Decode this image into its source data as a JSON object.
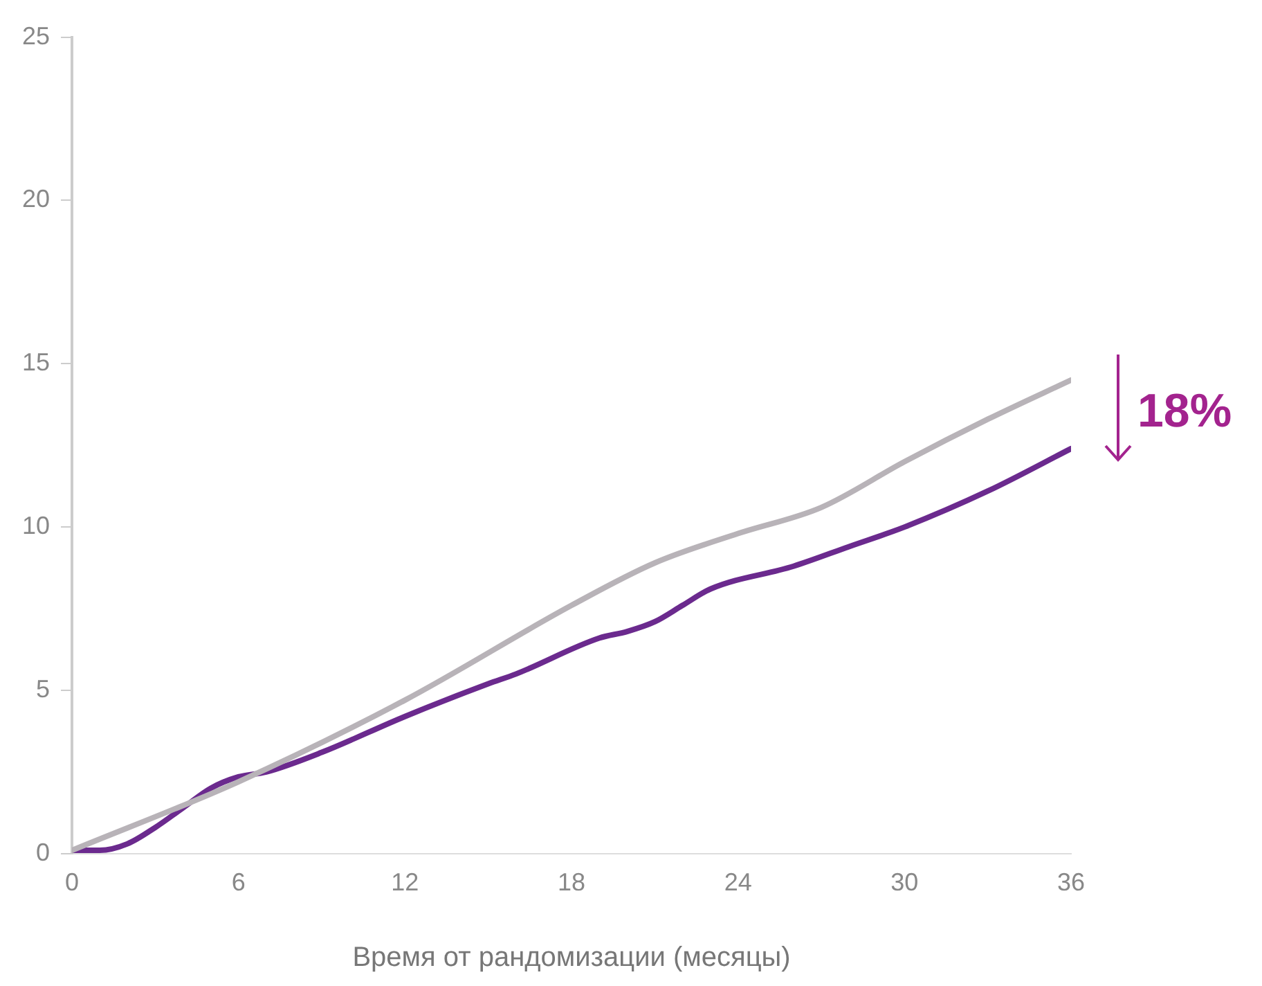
{
  "chart_data": {
    "type": "line",
    "xlabel": "Время от рандомизации (месяцы)",
    "x": [
      0,
      1,
      2,
      3,
      4,
      5,
      6,
      7,
      9,
      12,
      15,
      16,
      19,
      20,
      21,
      22,
      23,
      26,
      28,
      30,
      33,
      36
    ],
    "xlim": [
      0,
      36
    ],
    "xticks": [
      0,
      6,
      12,
      18,
      24,
      30,
      36
    ],
    "ylim": [
      0,
      25
    ],
    "yticks": [
      0,
      5,
      10,
      15,
      20,
      25
    ],
    "grid": false,
    "legend": false,
    "marker": "none",
    "line_style": "solid",
    "series": [
      {
        "color": "#b8b3b8",
        "x": [
          0,
          6,
          12,
          18,
          21,
          24,
          27,
          30,
          33,
          36
        ],
        "values": [
          0.1,
          2.2,
          4.7,
          7.6,
          8.9,
          9.8,
          10.6,
          12.0,
          13.3,
          14.5
        ]
      },
      {
        "color": "#6b2a8e",
        "values": [
          0.1,
          0.1,
          0.3,
          0.8,
          1.4,
          2.0,
          2.35,
          2.5,
          3.1,
          4.2,
          5.2,
          5.5,
          6.6,
          6.8,
          7.1,
          7.6,
          8.1,
          8.8,
          9.4,
          10.0,
          11.1,
          12.4
        ]
      }
    ],
    "annotations": [
      "18%"
    ]
  }
}
